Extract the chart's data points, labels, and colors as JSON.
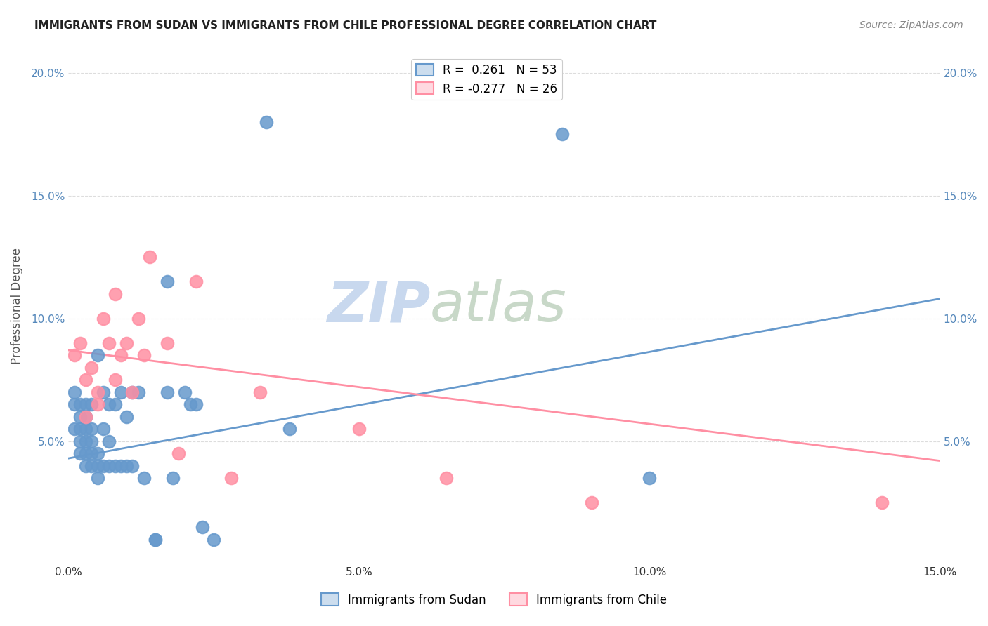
{
  "title": "IMMIGRANTS FROM SUDAN VS IMMIGRANTS FROM CHILE PROFESSIONAL DEGREE CORRELATION CHART",
  "source": "Source: ZipAtlas.com",
  "ylabel": "Professional Degree",
  "xlim": [
    0.0,
    0.15
  ],
  "ylim": [
    0.0,
    0.21
  ],
  "xticks": [
    0.0,
    0.05,
    0.1,
    0.15
  ],
  "yticks": [
    0.0,
    0.05,
    0.1,
    0.15,
    0.2
  ],
  "xtick_labels": [
    "0.0%",
    "5.0%",
    "10.0%",
    "15.0%"
  ],
  "ytick_labels_left": [
    "",
    "5.0%",
    "10.0%",
    "15.0%",
    "20.0%"
  ],
  "ytick_labels_right": [
    "",
    "5.0%",
    "10.0%",
    "15.0%",
    "20.0%"
  ],
  "sudan_color": "#6699CC",
  "chile_color": "#FF8FA3",
  "sudan_R": 0.261,
  "sudan_N": 53,
  "chile_R": -0.277,
  "chile_N": 26,
  "sudan_x": [
    0.001,
    0.001,
    0.001,
    0.002,
    0.002,
    0.002,
    0.002,
    0.002,
    0.003,
    0.003,
    0.003,
    0.003,
    0.003,
    0.003,
    0.004,
    0.004,
    0.004,
    0.004,
    0.004,
    0.005,
    0.005,
    0.005,
    0.005,
    0.006,
    0.006,
    0.006,
    0.007,
    0.007,
    0.007,
    0.008,
    0.008,
    0.009,
    0.009,
    0.01,
    0.01,
    0.011,
    0.011,
    0.012,
    0.013,
    0.015,
    0.015,
    0.017,
    0.017,
    0.018,
    0.02,
    0.021,
    0.022,
    0.023,
    0.025,
    0.034,
    0.038,
    0.085,
    0.1
  ],
  "sudan_y": [
    0.055,
    0.065,
    0.07,
    0.045,
    0.05,
    0.055,
    0.06,
    0.065,
    0.04,
    0.045,
    0.05,
    0.055,
    0.06,
    0.065,
    0.04,
    0.045,
    0.05,
    0.055,
    0.065,
    0.035,
    0.04,
    0.045,
    0.085,
    0.04,
    0.055,
    0.07,
    0.04,
    0.05,
    0.065,
    0.04,
    0.065,
    0.04,
    0.07,
    0.04,
    0.06,
    0.04,
    0.07,
    0.07,
    0.035,
    0.01,
    0.01,
    0.115,
    0.07,
    0.035,
    0.07,
    0.065,
    0.065,
    0.015,
    0.01,
    0.18,
    0.055,
    0.175,
    0.035
  ],
  "chile_x": [
    0.001,
    0.002,
    0.003,
    0.003,
    0.004,
    0.005,
    0.005,
    0.006,
    0.007,
    0.008,
    0.008,
    0.009,
    0.01,
    0.011,
    0.012,
    0.013,
    0.014,
    0.017,
    0.019,
    0.022,
    0.028,
    0.033,
    0.05,
    0.065,
    0.09,
    0.14
  ],
  "chile_y": [
    0.085,
    0.09,
    0.06,
    0.075,
    0.08,
    0.065,
    0.07,
    0.1,
    0.09,
    0.075,
    0.11,
    0.085,
    0.09,
    0.07,
    0.1,
    0.085,
    0.125,
    0.09,
    0.045,
    0.115,
    0.035,
    0.07,
    0.055,
    0.035,
    0.025,
    0.025
  ],
  "sudan_trend_x": [
    0.0,
    0.15
  ],
  "sudan_trend_y": [
    0.043,
    0.108
  ],
  "chile_trend_x": [
    0.0,
    0.15
  ],
  "chile_trend_y": [
    0.087,
    0.042
  ],
  "watermark_zip": "ZIP",
  "watermark_atlas": "atlas",
  "watermark_color_zip": "#C8D8EE",
  "watermark_color_atlas": "#C8D8C8",
  "background_color": "#FFFFFF",
  "grid_color": "#DDDDDD",
  "tick_color": "#5588BB",
  "title_fontsize": 11,
  "legend_fontsize": 12,
  "axis_tick_fontsize": 11
}
